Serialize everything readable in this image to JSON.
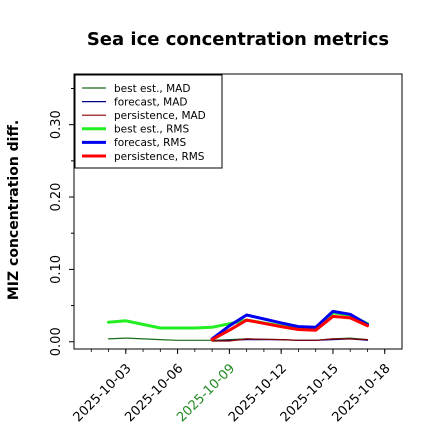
{
  "chart_data": {
    "type": "line",
    "title": "Sea ice concentration metrics",
    "xlabel": "",
    "ylabel": "MIZ concentration diff.",
    "ylim": [
      -0.01,
      0.37
    ],
    "y_ticks": [
      0.0,
      0.1,
      0.2,
      0.3
    ],
    "y_tick_labels": [
      "0.00",
      "0.10",
      "0.20",
      "0.30"
    ],
    "x_ticks": [
      "2025-10-03",
      "2025-10-06",
      "2025-10-09",
      "2025-10-12",
      "2025-10-15",
      "2025-10-18"
    ],
    "x_tick_colors": [
      "#000000",
      "#000000",
      "#228B22",
      "#000000",
      "#000000",
      "#000000"
    ],
    "xlim": [
      "2025-09-30",
      "2025-10-19"
    ],
    "grid": false,
    "legend_position": "top-left",
    "series": [
      {
        "name": "best est., MAD",
        "color": "#1a6b1a",
        "width": 1.2,
        "x": [
          "2025-10-02",
          "2025-10-03",
          "2025-10-05",
          "2025-10-06",
          "2025-10-07",
          "2025-10-08",
          "2025-10-09",
          "2025-10-10",
          "2025-10-12",
          "2025-10-13",
          "2025-10-14",
          "2025-10-15",
          "2025-10-16",
          "2025-10-17"
        ],
        "y": [
          0.004,
          0.005,
          0.003,
          0.002,
          0.002,
          0.002,
          0.003,
          0.004,
          0.003,
          0.002,
          0.002,
          0.004,
          0.005,
          0.003
        ]
      },
      {
        "name": "forecast,  MAD",
        "color": "#00008b",
        "width": 1.2,
        "x": [
          "2025-10-08",
          "2025-10-09",
          "2025-10-10",
          "2025-10-12",
          "2025-10-13",
          "2025-10-14",
          "2025-10-15",
          "2025-10-16",
          "2025-10-17"
        ],
        "y": [
          0.001,
          0.002,
          0.003,
          0.003,
          0.002,
          0.002,
          0.003,
          0.004,
          0.002
        ]
      },
      {
        "name": "persistence, MAD",
        "color": "#8b0000",
        "width": 1.2,
        "x": [
          "2025-10-08",
          "2025-10-09",
          "2025-10-10",
          "2025-10-12",
          "2025-10-13",
          "2025-10-14",
          "2025-10-15",
          "2025-10-16",
          "2025-10-17"
        ],
        "y": [
          0.001,
          0.001,
          0.004,
          0.003,
          0.002,
          0.002,
          0.004,
          0.004,
          0.003
        ]
      },
      {
        "name": "best est., RMS",
        "color": "#22ee22",
        "width": 3,
        "x": [
          "2025-10-02",
          "2025-10-03",
          "2025-10-05",
          "2025-10-06",
          "2025-10-07",
          "2025-10-08",
          "2025-10-09",
          "2025-10-10",
          "2025-10-12",
          "2025-10-13",
          "2025-10-14",
          "2025-10-15",
          "2025-10-16",
          "2025-10-17"
        ],
        "y": [
          0.027,
          0.029,
          0.019,
          0.019,
          0.019,
          0.02,
          0.025,
          0.03,
          0.022,
          0.018,
          0.017,
          0.04,
          0.037,
          0.025
        ]
      },
      {
        "name": "forecast,  RMS",
        "color": "#0000ee",
        "width": 3,
        "x": [
          "2025-10-08",
          "2025-10-09",
          "2025-10-10",
          "2025-10-12",
          "2025-10-13",
          "2025-10-14",
          "2025-10-15",
          "2025-10-16",
          "2025-10-17"
        ],
        "y": [
          0.004,
          0.022,
          0.037,
          0.026,
          0.021,
          0.02,
          0.042,
          0.038,
          0.024
        ]
      },
      {
        "name": "persistence, RMS",
        "color": "#ff0000",
        "width": 3,
        "x": [
          "2025-10-08",
          "2025-10-09",
          "2025-10-10",
          "2025-10-12",
          "2025-10-13",
          "2025-10-14",
          "2025-10-15",
          "2025-10-16",
          "2025-10-17"
        ],
        "y": [
          0.003,
          0.016,
          0.03,
          0.021,
          0.017,
          0.016,
          0.035,
          0.033,
          0.022
        ]
      }
    ]
  }
}
